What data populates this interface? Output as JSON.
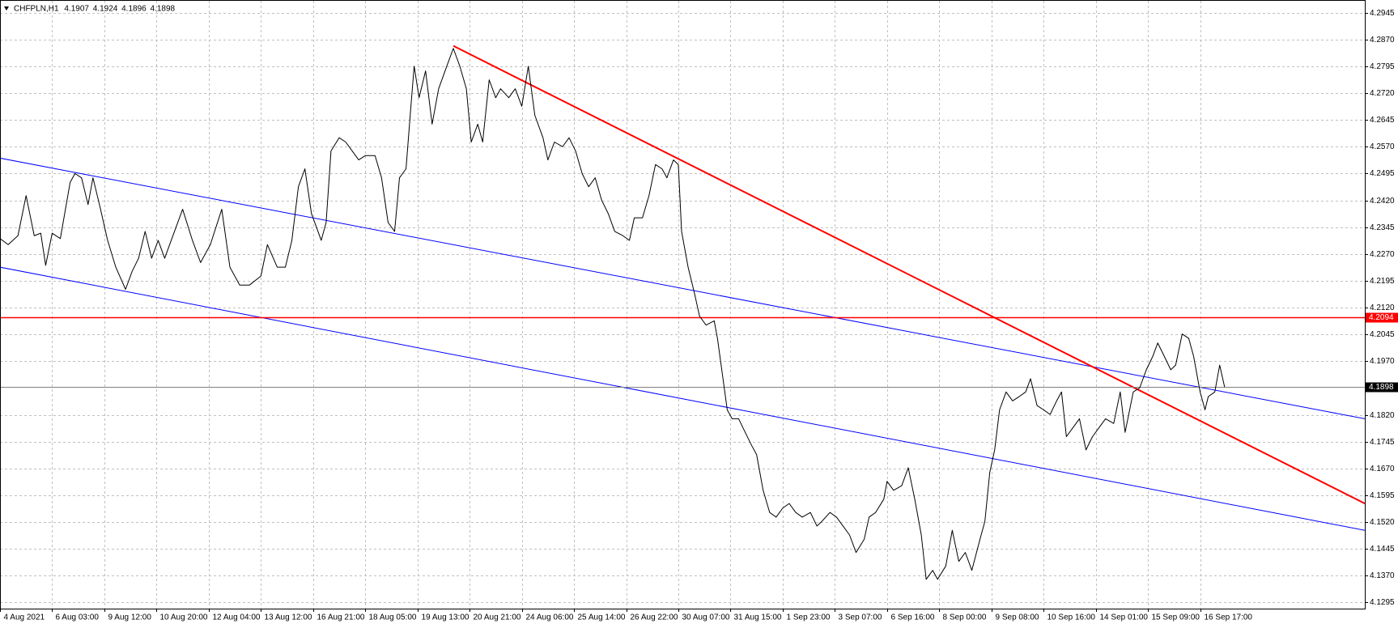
{
  "chart_data": {
    "type": "line",
    "symbol": "CHFPLN,H1",
    "ohlc": [
      4.1907,
      4.1924,
      4.1896,
      4.1898
    ],
    "color": "#000000",
    "x": [
      0,
      5,
      11,
      16,
      21,
      25,
      28,
      32,
      37,
      43,
      46,
      50,
      54,
      57,
      61,
      66,
      71,
      77,
      81,
      85,
      89,
      93,
      97,
      101,
      105,
      112,
      118,
      123,
      129,
      136,
      141,
      147,
      153,
      160,
      164,
      170,
      175,
      179,
      183,
      187,
      191,
      197,
      200,
      203,
      208,
      212,
      216,
      220,
      224,
      230,
      234,
      238,
      242,
      245,
      249,
      252,
      254,
      257,
      261,
      265,
      269,
      274,
      278,
      282,
      286,
      289,
      293,
      296,
      300,
      304,
      307,
      312,
      316,
      320,
      324,
      328,
      333,
      336,
      340,
      345,
      349,
      353,
      357,
      361,
      365,
      369,
      373,
      377,
      382,
      386,
      389,
      394,
      398,
      402,
      406,
      409,
      413,
      416,
      418,
      422,
      426,
      429,
      433,
      438,
      440,
      443,
      446,
      449,
      453,
      457,
      461,
      464,
      468,
      472,
      476,
      480,
      484,
      488,
      492,
      497,
      501,
      504,
      509,
      513,
      517,
      521,
      525,
      530,
      533,
      537,
      542,
      544,
      548,
      553,
      557,
      561,
      565,
      568,
      572,
      575,
      580,
      584,
      588,
      592,
      596,
      601,
      604,
      607,
      610,
      613,
      617,
      621,
      625,
      629,
      632,
      636,
      640,
      644,
      648,
      651,
      654,
      658,
      662,
      666,
      670,
      674,
      678,
      683,
      687,
      690,
      695,
      699,
      703,
      707,
      710,
      714,
      718,
      721,
      725,
      729,
      732,
      736,
      739,
      741,
      745,
      748,
      751
    ],
    "values": [
      4.2313,
      4.2296,
      4.2321,
      4.2433,
      4.2321,
      4.2328,
      4.2238,
      4.2328,
      4.2313,
      4.247,
      4.2495,
      4.2483,
      4.2408,
      4.2483,
      4.2408,
      4.2308,
      4.2233,
      4.2171,
      4.2221,
      4.2258,
      4.2333,
      4.2258,
      4.2308,
      4.2258,
      4.2308,
      4.2395,
      4.2308,
      4.2246,
      4.2296,
      4.2395,
      4.2233,
      4.2183,
      4.2183,
      4.2208,
      4.2296,
      4.2233,
      4.2233,
      4.2308,
      4.2458,
      4.2508,
      4.2383,
      4.2308,
      4.2358,
      4.2558,
      4.2595,
      4.2583,
      4.2558,
      4.2533,
      4.2545,
      4.2545,
      4.2483,
      4.2358,
      4.2333,
      4.2483,
      4.2508,
      4.2683,
      4.2795,
      4.2707,
      4.2782,
      4.2633,
      4.2732,
      4.2795,
      4.2845,
      4.2795,
      4.2732,
      4.2583,
      4.2633,
      4.2583,
      4.2757,
      4.2707,
      4.2732,
      4.2707,
      4.2732,
      4.2683,
      4.2795,
      4.2658,
      4.2595,
      4.2533,
      4.2583,
      4.257,
      4.2595,
      4.2558,
      4.2495,
      4.2458,
      4.2483,
      4.242,
      4.2383,
      4.2333,
      4.2321,
      4.2308,
      4.2371,
      4.2371,
      4.2433,
      4.252,
      4.2508,
      4.2483,
      4.2533,
      4.252,
      4.2333,
      4.2233,
      4.2158,
      4.2096,
      4.2071,
      4.2083,
      4.2034,
      4.1934,
      4.1834,
      4.1809,
      4.1809,
      4.1771,
      4.1734,
      4.1709,
      4.1609,
      4.1547,
      4.1534,
      4.1559,
      4.1572,
      4.1547,
      4.1534,
      4.1547,
      4.1509,
      4.1522,
      4.1547,
      4.1534,
      4.1509,
      4.1484,
      4.1435,
      4.1472,
      4.1534,
      4.1547,
      4.1584,
      4.1634,
      4.1609,
      4.1622,
      4.1672,
      4.1584,
      4.1484,
      4.136,
      4.1385,
      4.136,
      4.1397,
      4.1497,
      4.141,
      4.1435,
      4.1385,
      4.1472,
      4.1522,
      4.1659,
      4.1722,
      4.1834,
      4.1884,
      4.1859,
      4.1871,
      4.1884,
      4.1921,
      4.1846,
      4.1834,
      4.1821,
      4.1859,
      4.1884,
      4.1759,
      4.1784,
      4.1809,
      4.1722,
      4.1759,
      4.1784,
      4.1809,
      4.1796,
      4.1884,
      4.1771,
      4.1884,
      4.1896,
      4.1946,
      4.1984,
      4.2021,
      4.1984,
      4.1946,
      4.1959,
      4.2046,
      4.2034,
      4.1984,
      4.1884,
      4.1834,
      4.1871,
      4.1884,
      4.1959,
      4.1898
    ],
    "xlim": [
      0,
      837
    ],
    "ylim": [
      4.1278,
      4.2978
    ],
    "xticks": [
      {
        "value": 0,
        "label": "4 Aug 2021"
      },
      {
        "value": 32,
        "label": "6 Aug 03:00"
      },
      {
        "value": 64,
        "label": "9 Aug 12:00"
      },
      {
        "value": 96,
        "label": "10 Aug 20:00"
      },
      {
        "value": 128,
        "label": "12 Aug 04:00"
      },
      {
        "value": 160,
        "label": "13 Aug 12:00"
      },
      {
        "value": 192,
        "label": "16 Aug 21:00"
      },
      {
        "value": 224,
        "label": "18 Aug 05:00"
      },
      {
        "value": 256,
        "label": "19 Aug 13:00"
      },
      {
        "value": 288,
        "label": "20 Aug 21:00"
      },
      {
        "value": 320,
        "label": "24 Aug 06:00"
      },
      {
        "value": 352,
        "label": "25 Aug 14:00"
      },
      {
        "value": 384,
        "label": "26 Aug 22:00"
      },
      {
        "value": 416,
        "label": "30 Aug 07:00"
      },
      {
        "value": 448,
        "label": "31 Aug 15:00"
      },
      {
        "value": 480,
        "label": "1 Sep 23:00"
      },
      {
        "value": 512,
        "label": "3 Sep 07:00"
      },
      {
        "value": 544,
        "label": "6 Sep 16:00"
      },
      {
        "value": 576,
        "label": "8 Sep 00:00"
      },
      {
        "value": 608,
        "label": "9 Sep 08:00"
      },
      {
        "value": 640,
        "label": "10 Sep 16:00"
      },
      {
        "value": 672,
        "label": "14 Sep 01:00"
      },
      {
        "value": 704,
        "label": "15 Sep 09:00"
      },
      {
        "value": 736,
        "label": "16 Sep 17:00"
      }
    ],
    "yticks": [
      4.2945,
      {
        "value": 4.287,
        "label": "4.2870"
      },
      4.2795,
      {
        "value": 4.272,
        "label": "4.2720"
      },
      4.2645,
      {
        "value": 4.257,
        "label": "4.2570"
      },
      4.2495,
      {
        "value": 4.242,
        "label": "4.2420"
      },
      4.2345,
      {
        "value": 4.227,
        "label": "4.2270"
      },
      4.2195,
      {
        "value": 4.212,
        "label": "4.2120"
      },
      4.2045,
      {
        "value": 4.197,
        "label": "4.1970"
      },
      {
        "value": 4.182,
        "label": "4.1820"
      },
      4.1745,
      {
        "value": 4.167,
        "label": "4.1670"
      },
      4.1595,
      {
        "value": 4.152,
        "label": "4.1520"
      },
      4.1445,
      {
        "value": 4.137,
        "label": "4.1370"
      },
      4.1295
    ],
    "grid": true,
    "trendlines": [
      {
        "color": "#0000ff",
        "x": [
          0,
          837
        ],
        "y": [
          4.2538,
          4.1809
        ]
      },
      {
        "color": "#0000ff",
        "x": [
          0,
          837
        ],
        "y": [
          4.2233,
          4.1497
        ]
      },
      {
        "color": "#ff0000",
        "x": [
          278,
          837
        ],
        "y": [
          4.2852,
          4.1572
        ]
      }
    ],
    "hline": {
      "value": 4.2094,
      "color": "#ff0000"
    },
    "price_line": {
      "value": 4.1898,
      "color": "#808080"
    }
  }
}
